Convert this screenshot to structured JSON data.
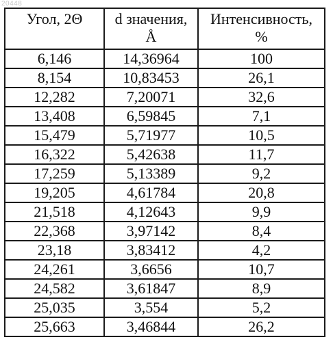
{
  "watermark": "20448",
  "table": {
    "headers": {
      "angle": "Угол, 2Θ",
      "d_line1": "d значения,",
      "d_line2": "Å",
      "intensity_line1": "Интенсивность,",
      "intensity_line2": "%"
    },
    "rows": [
      [
        "6,146",
        "14,36964",
        "100"
      ],
      [
        "8,154",
        "10,83453",
        "26,1"
      ],
      [
        "12,282",
        "7,20071",
        "32,6"
      ],
      [
        "13,408",
        "6,59845",
        "7,1"
      ],
      [
        "15,479",
        "5,71977",
        "10,5"
      ],
      [
        "16,322",
        "5,42638",
        "11,7"
      ],
      [
        "17,259",
        "5,13389",
        "9,2"
      ],
      [
        "19,205",
        "4,61784",
        "20,8"
      ],
      [
        "21,518",
        "4,12643",
        "9,9"
      ],
      [
        "22,368",
        "3,97142",
        "8,4"
      ],
      [
        "23,18",
        "3,83412",
        "4,2"
      ],
      [
        "24,261",
        "3,6656",
        "10,7"
      ],
      [
        "24,582",
        "3,61847",
        "8,9"
      ],
      [
        "25,035",
        "3,554",
        "5,2"
      ],
      [
        "25,663",
        "3,46844",
        "26,2"
      ]
    ]
  }
}
